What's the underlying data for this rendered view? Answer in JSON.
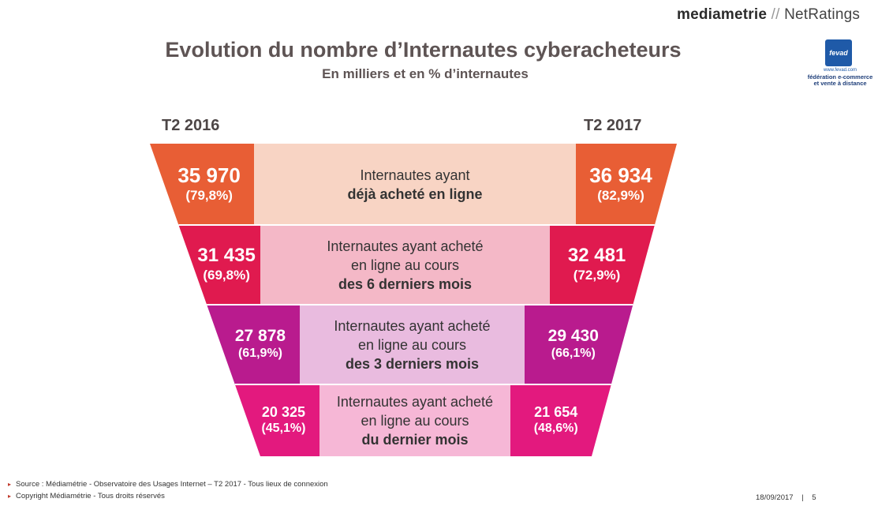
{
  "header": {
    "logo_brand": "mediametrie",
    "logo_sep": "//",
    "logo_sub": "NetRatings",
    "title": "Evolution du nombre d’Internautes cyberacheteurs",
    "subtitle": "En milliers et en % d’internautes"
  },
  "fevad": {
    "badge": "fevad",
    "url": "www.fevad.com",
    "line1": "fédération e-commerce",
    "line2": "et vente à distance"
  },
  "periods": {
    "left": "T2 2016",
    "right": "T2 2017"
  },
  "rows": [
    {
      "left_value": "35 970",
      "left_pct": "(79,8%)",
      "right_value": "36 934",
      "right_pct": "(82,9%)",
      "desc_line1": "Internautes ayant",
      "desc_line2": "",
      "desc_bold": "déjà acheté en ligne",
      "colors": {
        "side": "#e85e35",
        "center": "#f8d4c4"
      }
    },
    {
      "left_value": "31 435",
      "left_pct": "(69,8%)",
      "right_value": "32 481",
      "right_pct": "(72,9%)",
      "desc_line1": "Internautes ayant acheté",
      "desc_line2": "en ligne au cours",
      "desc_bold": "des 6 derniers mois",
      "colors": {
        "side": "#e01a4f",
        "center": "#f4b8c7"
      }
    },
    {
      "left_value": "27 878",
      "left_pct": "(61,9%)",
      "right_value": "29 430",
      "right_pct": "(66,1%)",
      "desc_line1": "Internautes ayant acheté",
      "desc_line2": "en ligne au cours",
      "desc_bold": "des 3 derniers mois",
      "colors": {
        "side": "#b91b8e",
        "center": "#e9bbdf"
      }
    },
    {
      "left_value": "20 325",
      "left_pct": "(45,1%)",
      "right_value": "21 654",
      "right_pct": "(48,6%)",
      "desc_line1": "Internautes ayant acheté",
      "desc_line2": "en ligne au cours",
      "desc_bold": "du dernier mois",
      "colors": {
        "side": "#e3197e",
        "center": "#f6b7d6"
      }
    }
  ],
  "footer": {
    "source": "Source : Médiamétrie - Observatoire des Usages Internet – T2 2017 - Tous lieux de connexion",
    "copyright": "Copyright Médiamétrie - Tous droits réservés",
    "date": "18/09/2017",
    "page": "5"
  }
}
